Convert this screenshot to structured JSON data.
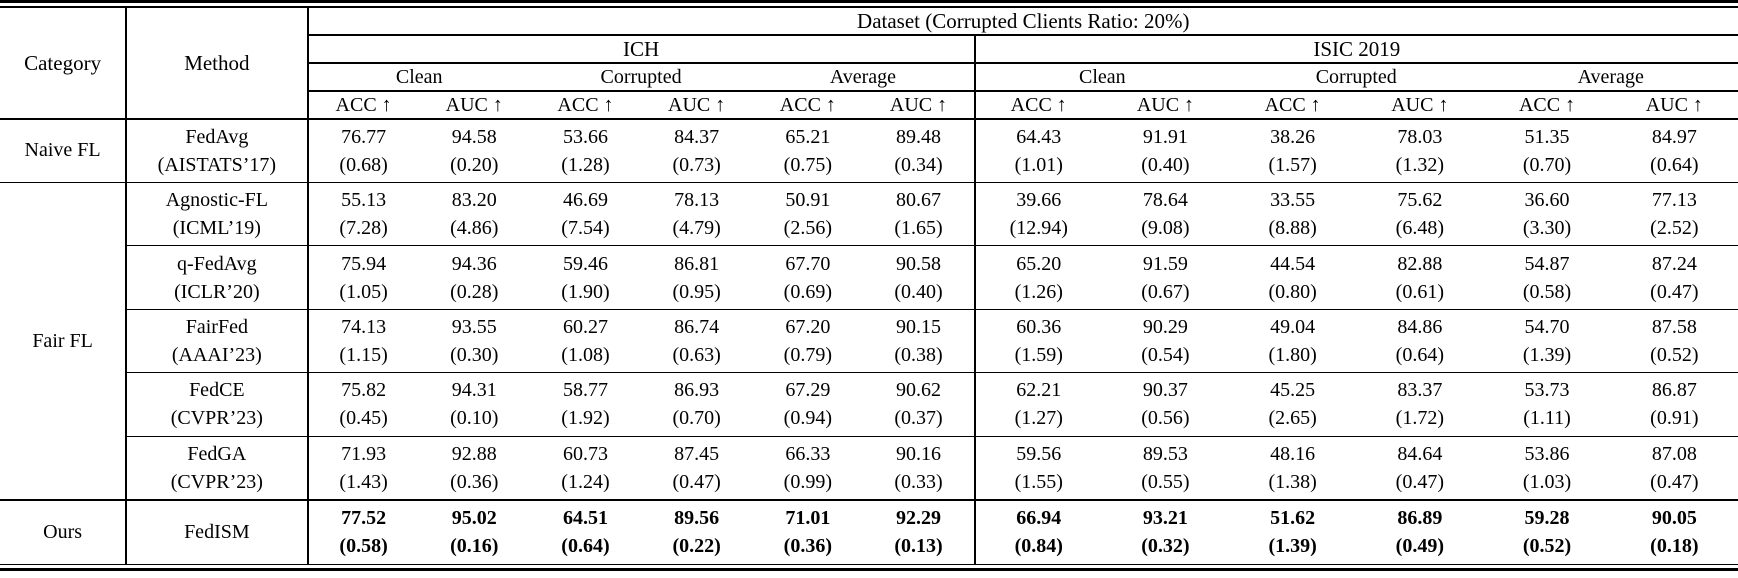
{
  "table": {
    "title": "Dataset (Corrupted Clients Ratio: 20%)",
    "col_category": "Category",
    "col_method": "Method",
    "datasets": [
      "ICH",
      "ISIC 2019"
    ],
    "subgroups": [
      "Clean",
      "Corrupted",
      "Average"
    ],
    "metrics": [
      "ACC ↑",
      "AUC ↑"
    ],
    "rows": [
      {
        "category": "Naive FL",
        "category_span": 1,
        "method": "FedAvg",
        "venue": "(AISTATS’17)",
        "bold": false,
        "values": [
          {
            "m": "76.77",
            "s": "(0.68)"
          },
          {
            "m": "94.58",
            "s": "(0.20)"
          },
          {
            "m": "53.66",
            "s": "(1.28)"
          },
          {
            "m": "84.37",
            "s": "(0.73)"
          },
          {
            "m": "65.21",
            "s": "(0.75)"
          },
          {
            "m": "89.48",
            "s": "(0.34)"
          },
          {
            "m": "64.43",
            "s": "(1.01)"
          },
          {
            "m": "91.91",
            "s": "(0.40)"
          },
          {
            "m": "38.26",
            "s": "(1.57)"
          },
          {
            "m": "78.03",
            "s": "(1.32)"
          },
          {
            "m": "51.35",
            "s": "(0.70)"
          },
          {
            "m": "84.97",
            "s": "(0.64)"
          }
        ]
      },
      {
        "category": "Fair FL",
        "category_span": 5,
        "method": "Agnostic-FL",
        "venue": "(ICML’19)",
        "bold": false,
        "values": [
          {
            "m": "55.13",
            "s": "(7.28)"
          },
          {
            "m": "83.20",
            "s": "(4.86)"
          },
          {
            "m": "46.69",
            "s": "(7.54)"
          },
          {
            "m": "78.13",
            "s": "(4.79)"
          },
          {
            "m": "50.91",
            "s": "(2.56)"
          },
          {
            "m": "80.67",
            "s": "(1.65)"
          },
          {
            "m": "39.66",
            "s": "(12.94)"
          },
          {
            "m": "78.64",
            "s": "(9.08)"
          },
          {
            "m": "33.55",
            "s": "(8.88)"
          },
          {
            "m": "75.62",
            "s": "(6.48)"
          },
          {
            "m": "36.60",
            "s": "(3.30)"
          },
          {
            "m": "77.13",
            "s": "(2.52)"
          }
        ]
      },
      {
        "method": "q-FedAvg",
        "venue": "(ICLR’20)",
        "bold": false,
        "values": [
          {
            "m": "75.94",
            "s": "(1.05)"
          },
          {
            "m": "94.36",
            "s": "(0.28)"
          },
          {
            "m": "59.46",
            "s": "(1.90)"
          },
          {
            "m": "86.81",
            "s": "(0.95)"
          },
          {
            "m": "67.70",
            "s": "(0.69)"
          },
          {
            "m": "90.58",
            "s": "(0.40)"
          },
          {
            "m": "65.20",
            "s": "(1.26)"
          },
          {
            "m": "91.59",
            "s": "(0.67)"
          },
          {
            "m": "44.54",
            "s": "(0.80)"
          },
          {
            "m": "82.88",
            "s": "(0.61)"
          },
          {
            "m": "54.87",
            "s": "(0.58)"
          },
          {
            "m": "87.24",
            "s": "(0.47)"
          }
        ]
      },
      {
        "method": "FairFed",
        "venue": "(AAAI’23)",
        "bold": false,
        "values": [
          {
            "m": "74.13",
            "s": "(1.15)"
          },
          {
            "m": "93.55",
            "s": "(0.30)"
          },
          {
            "m": "60.27",
            "s": "(1.08)"
          },
          {
            "m": "86.74",
            "s": "(0.63)"
          },
          {
            "m": "67.20",
            "s": "(0.79)"
          },
          {
            "m": "90.15",
            "s": "(0.38)"
          },
          {
            "m": "60.36",
            "s": "(1.59)"
          },
          {
            "m": "90.29",
            "s": "(0.54)"
          },
          {
            "m": "49.04",
            "s": "(1.80)"
          },
          {
            "m": "84.86",
            "s": "(0.64)"
          },
          {
            "m": "54.70",
            "s": "(1.39)"
          },
          {
            "m": "87.58",
            "s": "(0.52)"
          }
        ]
      },
      {
        "method": "FedCE",
        "venue": "(CVPR’23)",
        "bold": false,
        "values": [
          {
            "m": "75.82",
            "s": "(0.45)"
          },
          {
            "m": "94.31",
            "s": "(0.10)"
          },
          {
            "m": "58.77",
            "s": "(1.92)"
          },
          {
            "m": "86.93",
            "s": "(0.70)"
          },
          {
            "m": "67.29",
            "s": "(0.94)"
          },
          {
            "m": "90.62",
            "s": "(0.37)"
          },
          {
            "m": "62.21",
            "s": "(1.27)"
          },
          {
            "m": "90.37",
            "s": "(0.56)"
          },
          {
            "m": "45.25",
            "s": "(2.65)"
          },
          {
            "m": "83.37",
            "s": "(1.72)"
          },
          {
            "m": "53.73",
            "s": "(1.11)"
          },
          {
            "m": "86.87",
            "s": "(0.91)"
          }
        ]
      },
      {
        "method": "FedGA",
        "venue": "(CVPR’23)",
        "bold": false,
        "values": [
          {
            "m": "71.93",
            "s": "(1.43)"
          },
          {
            "m": "92.88",
            "s": "(0.36)"
          },
          {
            "m": "60.73",
            "s": "(1.24)"
          },
          {
            "m": "87.45",
            "s": "(0.47)"
          },
          {
            "m": "66.33",
            "s": "(0.99)"
          },
          {
            "m": "90.16",
            "s": "(0.33)"
          },
          {
            "m": "59.56",
            "s": "(1.55)"
          },
          {
            "m": "89.53",
            "s": "(0.55)"
          },
          {
            "m": "48.16",
            "s": "(1.38)"
          },
          {
            "m": "84.64",
            "s": "(0.47)"
          },
          {
            "m": "53.86",
            "s": "(1.03)"
          },
          {
            "m": "87.08",
            "s": "(0.47)"
          }
        ]
      },
      {
        "category": "Ours",
        "category_span": 1,
        "method": "FedISM",
        "venue": "",
        "bold": true,
        "values": [
          {
            "m": "77.52",
            "s": "(0.58)"
          },
          {
            "m": "95.02",
            "s": "(0.16)"
          },
          {
            "m": "64.51",
            "s": "(0.64)"
          },
          {
            "m": "89.56",
            "s": "(0.22)"
          },
          {
            "m": "71.01",
            "s": "(0.36)"
          },
          {
            "m": "92.29",
            "s": "(0.13)"
          },
          {
            "m": "66.94",
            "s": "(0.84)"
          },
          {
            "m": "93.21",
            "s": "(0.32)"
          },
          {
            "m": "51.62",
            "s": "(1.39)"
          },
          {
            "m": "86.89",
            "s": "(0.49)"
          },
          {
            "m": "59.28",
            "s": "(0.52)"
          },
          {
            "m": "90.05",
            "s": "(0.18)"
          }
        ]
      }
    ]
  }
}
